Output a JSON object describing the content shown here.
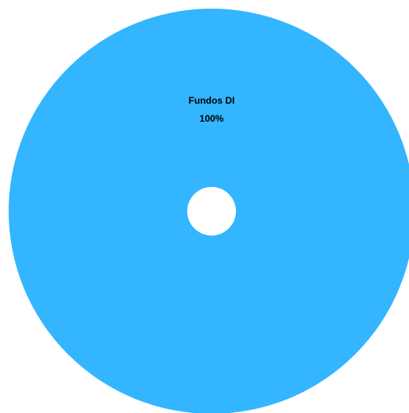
{
  "chart_data": {
    "type": "pie",
    "variant": "donut",
    "title": "",
    "slices": [
      {
        "label": "Fundos DI",
        "value": 100,
        "percent_label": "100%",
        "color": "#33b5ff"
      }
    ],
    "legend": "none"
  }
}
